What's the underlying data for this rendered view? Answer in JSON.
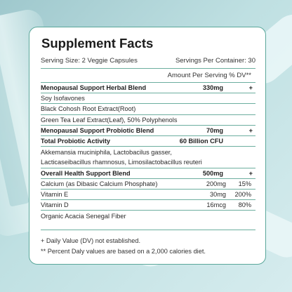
{
  "title": "Supplement Facts",
  "serving_size": "Serving Size: 2 Veggie Capsules",
  "servings_per_container": "Servings Per Container: 30",
  "amount_per_serving": "Amount Per Serving % DV**",
  "blend1": {
    "name": "Menopausal Support Herbal Blend",
    "amount": "330mg",
    "dv": "+"
  },
  "blend1_items": [
    "Soy Isofavones",
    "Black Cohosh Root Extract(Root)",
    "Green Tea Leaf Extract(Leaf), 50% Polyphenols"
  ],
  "blend2": {
    "name": "Menopausal Support Probiotic Blend",
    "amount": "70mg",
    "dv": "+"
  },
  "probiotic_activity": {
    "name": "Total Probiotic Activity",
    "amount": "60 Billion CFU"
  },
  "probiotic_strains": [
    "Akkemansia muciniphila, Lactobacilus gasser,",
    "Lacticaseibacillus rhamnosus, Limosilactobacillus reuteri"
  ],
  "blend3": {
    "name": "Overall Health Support Blend",
    "amount": "500mg",
    "dv": "+"
  },
  "nutrients": [
    {
      "name": "Calcium (as Dibasic Calcium Phosphate)",
      "amount": "200mg",
      "dv": "15%"
    },
    {
      "name": "Vitamin E",
      "amount": "30mg",
      "dv": "200%"
    },
    {
      "name": "Vitamin D",
      "amount": "16mcg",
      "dv": "80%"
    }
  ],
  "fiber": "Organic Acacia Senegal Fiber",
  "footnote1": "+ Daily Value (DV) not established.",
  "footnote2": "** Percent Daly values are based on a 2,000 calories diet.",
  "colors": {
    "border": "#5aa79a",
    "background": "#a9cfd3"
  }
}
